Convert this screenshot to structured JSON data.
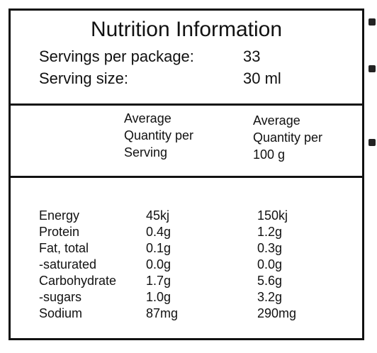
{
  "panel": {
    "title": "Nutrition Information",
    "servings": [
      {
        "label": "Servings per package:",
        "value": "33"
      },
      {
        "label": "Serving size:",
        "value": "30 ml"
      }
    ],
    "columns": [
      {
        "text": "Average\nQuantity per\nServing"
      },
      {
        "text": "Average\nQuantity per\n100 g"
      }
    ],
    "rows": [
      {
        "name": "Energy",
        "per_serving": "45kj",
        "per_100g": "150kj"
      },
      {
        "name": "Protein",
        "per_serving": "0.4g",
        "per_100g": "1.2g"
      },
      {
        "name": "Fat, total",
        "per_serving": "0.1g",
        "per_100g": "0.3g"
      },
      {
        "name": "-saturated",
        "per_serving": "0.0g",
        "per_100g": "0.0g"
      },
      {
        "name": "Carbohydrate",
        "per_serving": "1.7g",
        "per_100g": "5.6g"
      },
      {
        "name": "-sugars",
        "per_serving": "1.0g",
        "per_100g": "3.2g"
      },
      {
        "name": "Sodium",
        "per_serving": "87mg",
        "per_100g": "290mg"
      }
    ]
  },
  "colors": {
    "ink": "#111111",
    "background": "#ffffff"
  }
}
